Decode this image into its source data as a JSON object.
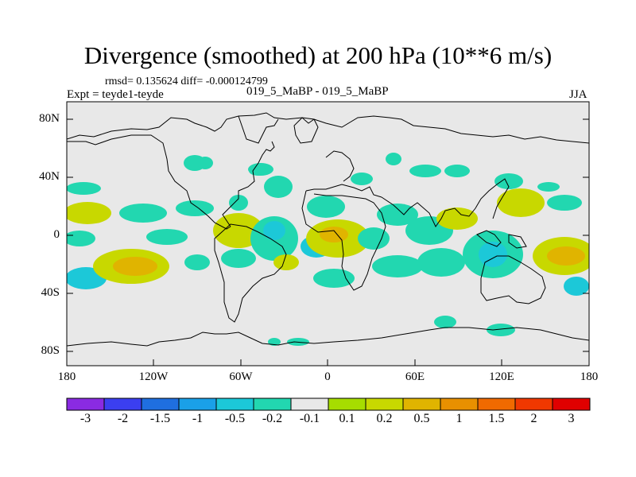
{
  "title": "Divergence (smoothed) at 200 hPa (10**6 m/s)",
  "stats": "rmsd= 0.135624 diff= -0.000124799",
  "expt": "Expt = teyde1-teyde",
  "runs": "019_5_MaBP - 019_5_MaBP",
  "season": "JJA",
  "lat_labels": [
    "80N",
    "40N",
    "0",
    "40S",
    "80S"
  ],
  "lon_labels": [
    "180",
    "120W",
    "60W",
    "0",
    "60E",
    "120E",
    "180"
  ],
  "colorbar": {
    "colors": [
      "#8a2be2",
      "#3b3ff0",
      "#1f6fe0",
      "#1aa0e8",
      "#1cc8d8",
      "#22d7b0",
      "#e8e8e8",
      "#a6dd00",
      "#c8d800",
      "#e0b400",
      "#e89000",
      "#f06a00",
      "#f03800",
      "#e00000"
    ],
    "labels": [
      "-3",
      "-2",
      "-1.5",
      "-1",
      "-0.5",
      "-0.2",
      "-0.1",
      "0.1",
      "0.2",
      "0.5",
      "1",
      "1.5",
      "2",
      "3"
    ]
  },
  "colors": {
    "land_mask": "#e8e8e8",
    "coast": "#000000"
  }
}
